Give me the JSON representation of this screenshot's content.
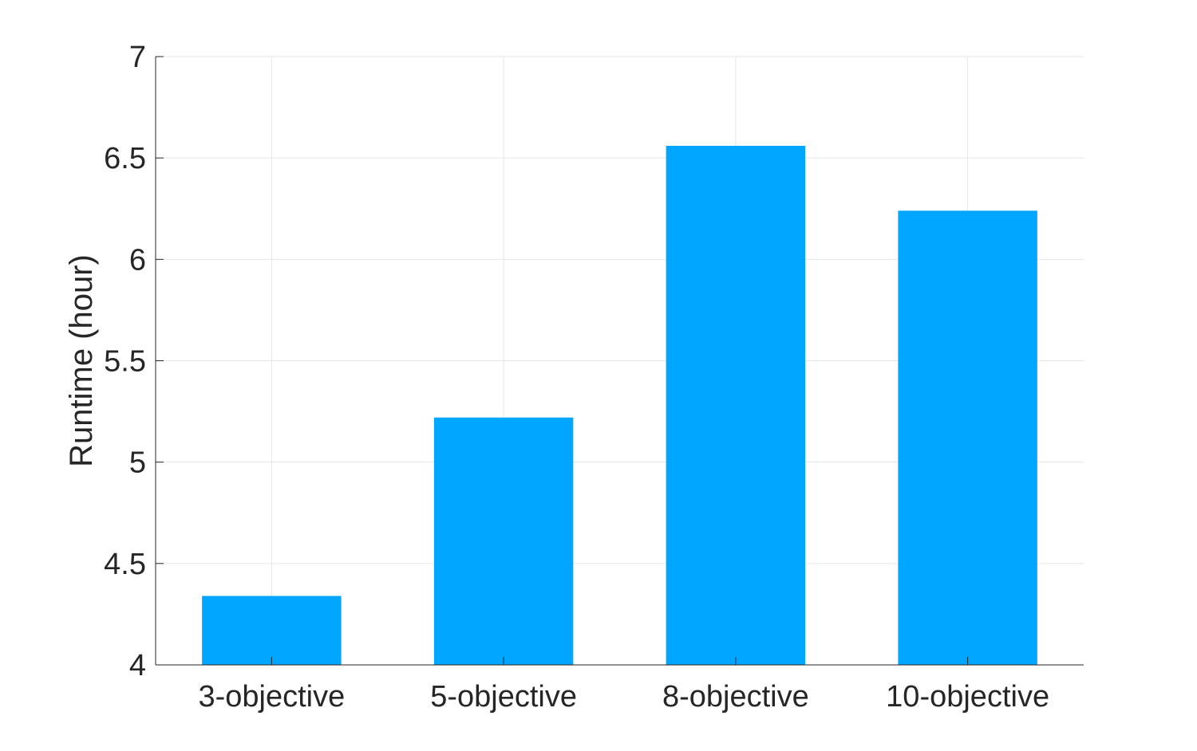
{
  "chart_data": {
    "type": "bar",
    "title": "",
    "xlabel": "",
    "ylabel": "Runtime (hour)",
    "categories": [
      "3-objective",
      "5-objective",
      "8-objective",
      "10-objective"
    ],
    "values": [
      4.34,
      5.22,
      6.56,
      6.24
    ],
    "ylim": [
      4,
      7
    ],
    "yticks": [
      "4",
      "4.5",
      "5",
      "5.5",
      "6",
      "6.5",
      "7"
    ],
    "ytick_values": [
      4,
      4.5,
      5,
      5.5,
      6,
      6.5,
      7
    ],
    "grid": true,
    "bar_color": "#00A6FF",
    "grid_color": "#E6E6E6",
    "axis_color": "#262626"
  }
}
